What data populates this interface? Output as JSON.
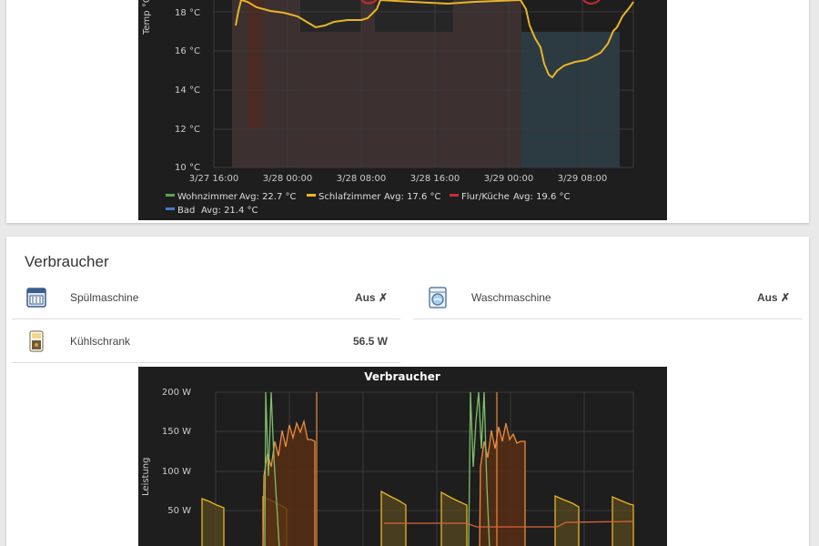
{
  "temp_card": {
    "chart_data": {
      "type": "line",
      "title": "",
      "ylabel": "Temp °C",
      "xlabel": "",
      "yticks": [
        "10 °C",
        "12 °C",
        "14 °C",
        "16 °C",
        "18 °C"
      ],
      "xticks": [
        "3/27 16:00",
        "3/28 00:00",
        "3/28 08:00",
        "3/28 16:00",
        "3/29 00:00",
        "3/29 08:00"
      ],
      "legend": [
        {
          "name": "Wohnzimmer",
          "avg": "Avg: 22.7 °C",
          "color": "#5aa64a"
        },
        {
          "name": "Schlafzimmer",
          "avg": "Avg: 17.6 °C",
          "color": "#e9b526"
        },
        {
          "name": "Flur/Küche",
          "avg": "Avg: 19.6 °C",
          "color": "#c42d2d"
        },
        {
          "name": "Bad",
          "avg": "Avg: 21.4 °C",
          "color": "#4a78c4"
        }
      ]
    }
  },
  "verbraucher": {
    "title": "Verbraucher",
    "devices": [
      {
        "label": "Spülmaschine",
        "value": "Aus ✗"
      },
      {
        "label": "Waschmaschine",
        "value": "Aus ✗"
      },
      {
        "label": "Kühlschrank",
        "value": "56.5 W"
      }
    ],
    "chart_data": {
      "type": "area",
      "title": "Verbraucher",
      "ylabel": "Leistung",
      "yticks": [
        "50 W",
        "100 W",
        "150 W",
        "200 W"
      ],
      "colors": {
        "green": "#7fbf6a",
        "orange": "#ef8b3d",
        "yellow": "#e9b526"
      }
    }
  }
}
